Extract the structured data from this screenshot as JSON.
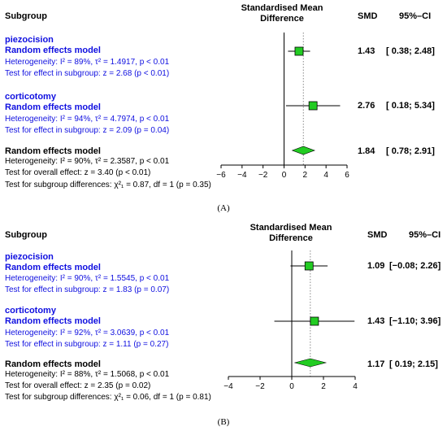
{
  "panels": [
    {
      "label": "(A)",
      "headers": {
        "subgroup": "Subgroup",
        "effect_line1": "Standardised Mean",
        "effect_line2": "Difference",
        "smd": "SMD",
        "ci": "95%–CI"
      },
      "rows": {
        "g1_name": "piezocision",
        "g1_model": "Random effects model",
        "g1_het": "Heterogeneity: I² = 89%, τ² = 1.4917, p < 0.01",
        "g1_test": "Test for effect in subgroup: z = 2.68 (p < 0.01)",
        "g1_smd": "1.43",
        "g1_ci": "[ 0.38;  2.48]",
        "g2_name": "corticotomy",
        "g2_model": "Random effects model",
        "g2_het": "Heterogeneity: I² = 94%, τ² = 4.7974, p < 0.01",
        "g2_test": "Test for effect in subgroup: z = 2.09 (p = 0.04)",
        "g2_smd": "2.76",
        "g2_ci": "[ 0.18;  5.34]",
        "overall_model": "Random effects model",
        "overall_het": "Heterogeneity: I² = 90%, τ² = 2.3587, p < 0.01",
        "overall_test": "Test for overall effect: z = 3.40 (p < 0.01)",
        "subgroup_diff": "Test for subgroup differences: χ²₁ = 0.87, df = 1 (p = 0.35)",
        "overall_smd": "1.84",
        "overall_ci": "[ 0.78;  2.91]"
      }
    },
    {
      "label": "(B)",
      "headers": {
        "subgroup": "Subgroup",
        "effect_line1": "Standardised Mean",
        "effect_line2": "Difference",
        "smd": "SMD",
        "ci": "95%–CI"
      },
      "rows": {
        "g1_name": "piezocision",
        "g1_model": "Random effects model",
        "g1_het": "Heterogeneity: I² = 90%, τ² = 1.5545, p < 0.01",
        "g1_test": "Test for effect in subgroup: z = 1.83 (p = 0.07)",
        "g1_smd": "1.09",
        "g1_ci": "[−0.08;  2.26]",
        "g2_name": "corticotomy",
        "g2_model": "Random effects model",
        "g2_het": "Heterogeneity: I² = 92%, τ² = 3.0639, p < 0.01",
        "g2_test": "Test for effect in subgroup: z = 1.11 (p = 0.27)",
        "g2_smd": "1.43",
        "g2_ci": "[−1.10;  3.96]",
        "overall_model": "Random effects model",
        "overall_het": "Heterogeneity: I² = 88%, τ² = 1.5068, p < 0.01",
        "overall_test": "Test for overall effect: z = 2.35 (p = 0.02)",
        "subgroup_diff": "Test for subgroup differences: χ²₁ = 0.06, df = 1 (p = 0.81)",
        "overall_smd": "1.17",
        "overall_ci": "[ 0.19;  2.15]"
      }
    }
  ],
  "chart_data": [
    {
      "type": "forest",
      "xlim": [
        -6,
        6
      ],
      "ticks": [
        -6,
        -4,
        -2,
        0,
        2,
        4,
        6
      ],
      "reference_line": 0,
      "pooled_line": 1.84,
      "colors": {
        "square": "#22cc22",
        "diamond": "#22cc22",
        "pooled_line": "#888888"
      },
      "estimates": [
        {
          "name": "piezocision",
          "smd": 1.43,
          "lower": 0.38,
          "upper": 2.48
        },
        {
          "name": "corticotomy",
          "smd": 2.76,
          "lower": 0.18,
          "upper": 5.34
        }
      ],
      "overall": {
        "smd": 1.84,
        "lower": 0.78,
        "upper": 2.91
      }
    },
    {
      "type": "forest",
      "xlim": [
        -4,
        4
      ],
      "ticks": [
        -4,
        -2,
        0,
        2,
        4
      ],
      "reference_line": 0,
      "pooled_line": 1.17,
      "colors": {
        "square": "#22cc22",
        "diamond": "#22cc22",
        "pooled_line": "#888888"
      },
      "estimates": [
        {
          "name": "piezocision",
          "smd": 1.09,
          "lower": -0.08,
          "upper": 2.26
        },
        {
          "name": "corticotomy",
          "smd": 1.43,
          "lower": -1.1,
          "upper": 3.96
        }
      ],
      "overall": {
        "smd": 1.17,
        "lower": 0.19,
        "upper": 2.15
      }
    }
  ]
}
